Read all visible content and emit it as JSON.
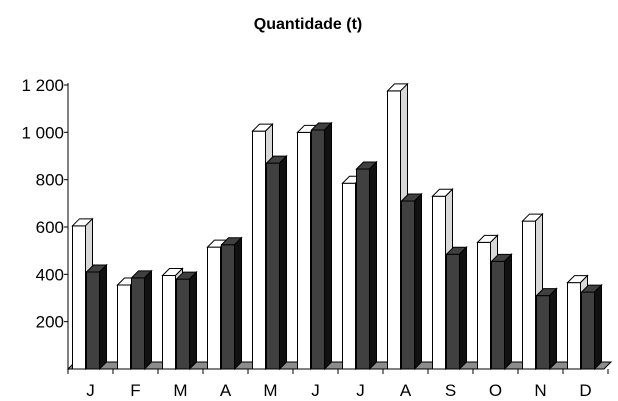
{
  "chart_data": {
    "type": "bar",
    "title": "Quantidade (t)",
    "xlabel": "",
    "ylabel": "",
    "categories": [
      "J",
      "F",
      "M",
      "A",
      "M",
      "J",
      "J",
      "A",
      "S",
      "O",
      "N",
      "D"
    ],
    "series": [
      {
        "values": [
          605,
          355,
          395,
          515,
          1005,
          1000,
          785,
          1175,
          730,
          535,
          625,
          365
        ]
      },
      {
        "values": [
          410,
          385,
          380,
          525,
          870,
          1010,
          845,
          710,
          485,
          455,
          310,
          325
        ]
      }
    ],
    "ylim": [
      0,
      1200
    ],
    "yticks": [
      200,
      400,
      600,
      800,
      1000,
      1200
    ],
    "ytick_labels": [
      "200",
      "400",
      "600",
      "800",
      "1 000",
      "1 200"
    ],
    "grid": false,
    "legend": "none",
    "style": "3d",
    "colors": {
      "series_0": "#ffffff",
      "series_0_side": "#d8d8d8",
      "series_1": "#404040",
      "series_1_side": "#111111",
      "floor": "#8c8c8c",
      "axis": "#000000"
    }
  }
}
